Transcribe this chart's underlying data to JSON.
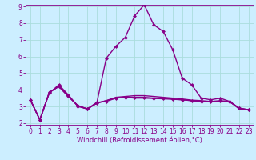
{
  "x": [
    0,
    1,
    2,
    3,
    4,
    5,
    6,
    7,
    8,
    9,
    10,
    11,
    12,
    13,
    14,
    15,
    16,
    17,
    18,
    19,
    20,
    21,
    22,
    23
  ],
  "line_spike": [
    3.4,
    2.2,
    3.8,
    4.3,
    3.7,
    3.0,
    2.85,
    3.2,
    5.9,
    6.6,
    7.15,
    8.45,
    9.1,
    7.9,
    7.5,
    6.4,
    4.7,
    4.3,
    3.5,
    3.4,
    3.5,
    3.3,
    2.9,
    2.8
  ],
  "line_flat1": [
    3.4,
    2.2,
    3.85,
    4.2,
    3.65,
    3.05,
    2.85,
    3.25,
    3.3,
    3.5,
    3.55,
    3.55,
    3.55,
    3.5,
    3.5,
    3.45,
    3.4,
    3.35,
    3.3,
    3.3,
    3.35,
    3.3,
    2.9,
    2.8
  ],
  "line_flat2": [
    3.4,
    2.2,
    3.85,
    4.2,
    3.6,
    3.05,
    2.85,
    3.2,
    3.35,
    3.55,
    3.6,
    3.65,
    3.65,
    3.6,
    3.55,
    3.5,
    3.45,
    3.38,
    3.35,
    3.3,
    3.3,
    3.3,
    2.85,
    2.8
  ],
  "line_flat3": [
    3.4,
    2.2,
    3.85,
    4.2,
    3.6,
    3.05,
    2.85,
    3.2,
    3.35,
    3.5,
    3.55,
    3.5,
    3.5,
    3.48,
    3.46,
    3.43,
    3.4,
    3.35,
    3.3,
    3.28,
    3.3,
    3.28,
    2.88,
    2.8
  ],
  "color": "#880088",
  "bg_color": "#cceeff",
  "grid_color": "#aadddd",
  "xlabel": "Windchill (Refroidissement éolien,°C)",
  "ylim": [
    2,
    9
  ],
  "xlim": [
    -0.5,
    23.5
  ],
  "yticks": [
    2,
    3,
    4,
    5,
    6,
    7,
    8,
    9
  ],
  "xticks": [
    0,
    1,
    2,
    3,
    4,
    5,
    6,
    7,
    8,
    9,
    10,
    11,
    12,
    13,
    14,
    15,
    16,
    17,
    18,
    19,
    20,
    21,
    22,
    23
  ],
  "markersize": 2.5,
  "linewidth": 1.0,
  "xlabel_fontsize": 6.0,
  "tick_fontsize": 5.5
}
